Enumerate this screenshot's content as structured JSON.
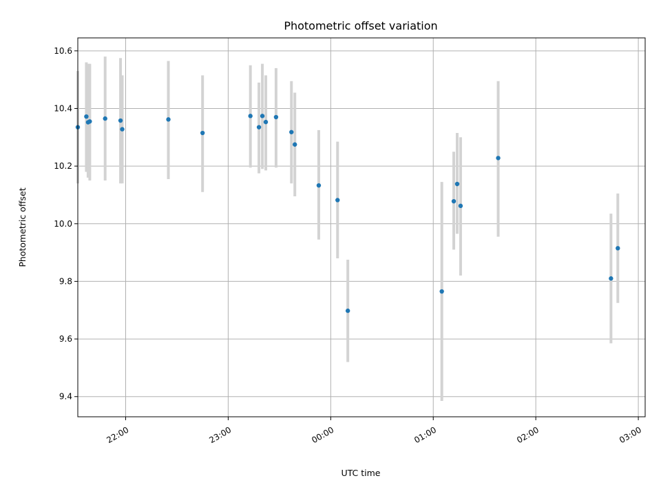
{
  "chart_data": {
    "type": "scatter",
    "title": "Photometric offset variation",
    "xlabel": "UTC time",
    "ylabel": "Photometric offset",
    "x_tick_labels": [
      "22:00",
      "23:00",
      "00:00",
      "01:00",
      "02:00",
      "03:00"
    ],
    "x_tick_times": [
      "22:00",
      "23:00",
      "00:00",
      "01:00",
      "02:00",
      "03:00"
    ],
    "xlim": [
      "21:32",
      "03:04"
    ],
    "y_tick_labels": [
      "9.4",
      "9.6",
      "9.8",
      "10.0",
      "10.2",
      "10.4",
      "10.6"
    ],
    "y_tick_values": [
      9.4,
      9.6,
      9.8,
      10.0,
      10.2,
      10.4,
      10.6
    ],
    "ylim": [
      9.33,
      10.645
    ],
    "grid": true,
    "colors": {
      "points": "#1f77b4",
      "error_bars": "#d3d3d3",
      "grid": "#b0b0b0",
      "axes": "#000000"
    },
    "points": [
      {
        "time": "21:32",
        "value": 10.335,
        "low": 10.14,
        "high": 10.53
      },
      {
        "time": "21:37",
        "value": 10.372,
        "low": 10.18,
        "high": 10.56
      },
      {
        "time": "21:38",
        "value": 10.352,
        "low": 10.16,
        "high": 10.555
      },
      {
        "time": "21:39",
        "value": 10.355,
        "low": 10.15,
        "high": 10.555
      },
      {
        "time": "21:48",
        "value": 10.365,
        "low": 10.15,
        "high": 10.58
      },
      {
        "time": "21:57",
        "value": 10.358,
        "low": 10.14,
        "high": 10.575
      },
      {
        "time": "21:58",
        "value": 10.328,
        "low": 10.14,
        "high": 10.515
      },
      {
        "time": "22:25",
        "value": 10.362,
        "low": 10.155,
        "high": 10.565
      },
      {
        "time": "22:45",
        "value": 10.315,
        "low": 10.11,
        "high": 10.515
      },
      {
        "time": "23:13",
        "value": 10.374,
        "low": 10.195,
        "high": 10.55
      },
      {
        "time": "23:18",
        "value": 10.335,
        "low": 10.175,
        "high": 10.49
      },
      {
        "time": "23:20",
        "value": 10.374,
        "low": 10.19,
        "high": 10.555
      },
      {
        "time": "23:22",
        "value": 10.353,
        "low": 10.185,
        "high": 10.515
      },
      {
        "time": "23:28",
        "value": 10.37,
        "low": 10.195,
        "high": 10.54
      },
      {
        "time": "23:37",
        "value": 10.318,
        "low": 10.14,
        "high": 10.495
      },
      {
        "time": "23:39",
        "value": 10.275,
        "low": 10.095,
        "high": 10.455
      },
      {
        "time": "23:53",
        "value": 10.133,
        "low": 9.945,
        "high": 10.325
      },
      {
        "time": "00:04",
        "value": 10.082,
        "low": 9.88,
        "high": 10.285
      },
      {
        "time": "00:10",
        "value": 9.698,
        "low": 9.52,
        "high": 9.875
      },
      {
        "time": "01:05",
        "value": 9.765,
        "low": 9.385,
        "high": 10.145
      },
      {
        "time": "01:12",
        "value": 10.078,
        "low": 9.91,
        "high": 10.25
      },
      {
        "time": "01:14",
        "value": 10.138,
        "low": 9.965,
        "high": 10.315
      },
      {
        "time": "01:16",
        "value": 10.062,
        "low": 9.82,
        "high": 10.3
      },
      {
        "time": "01:38",
        "value": 10.228,
        "low": 9.955,
        "high": 10.495
      },
      {
        "time": "02:44",
        "value": 9.81,
        "low": 9.585,
        "high": 10.035
      },
      {
        "time": "02:48",
        "value": 9.915,
        "low": 9.725,
        "high": 10.105
      }
    ]
  }
}
